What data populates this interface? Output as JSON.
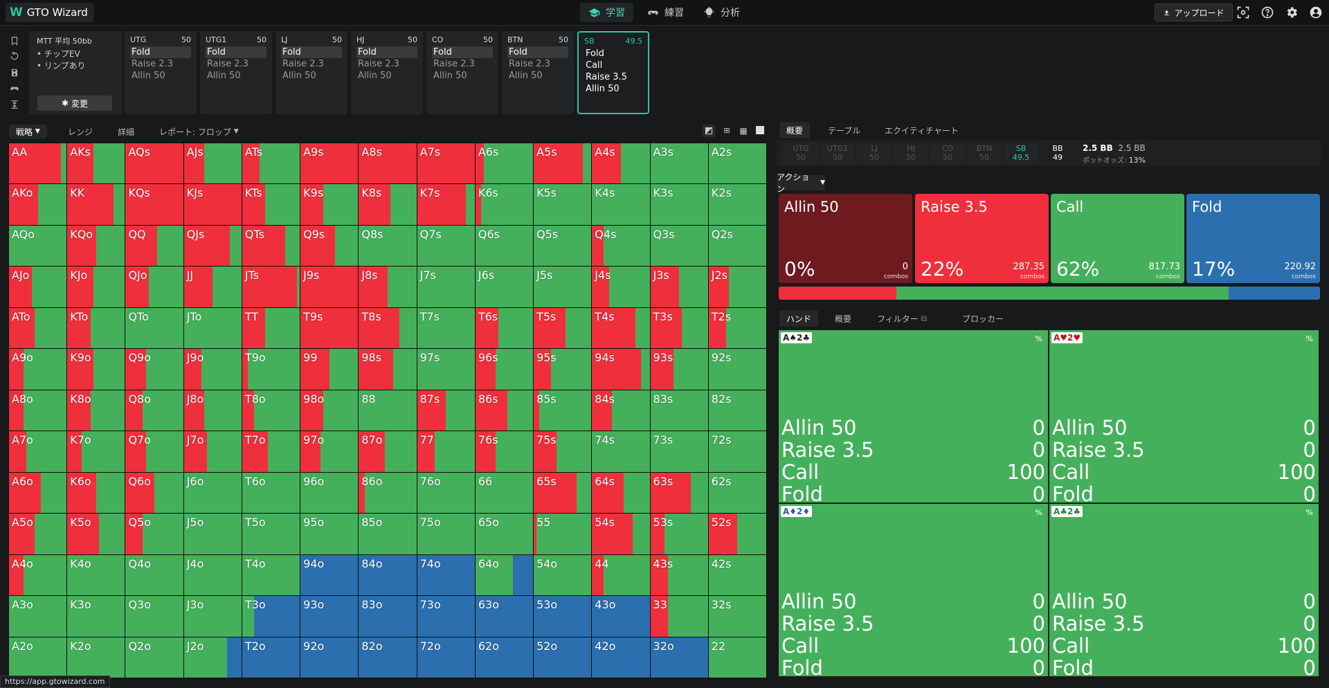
{
  "app": {
    "title": "GTO Wizard"
  },
  "nav": [
    {
      "label": "学習",
      "icon": "graduation-cap-icon",
      "active": true
    },
    {
      "label": "練習",
      "icon": "gamepad-icon",
      "active": false
    },
    {
      "label": "分析",
      "icon": "lightbulb-icon",
      "active": false
    }
  ],
  "toolbar": {
    "upload_label": "アップロード"
  },
  "game": {
    "title": "MTT 平均 50bb",
    "bullets": [
      "チップEV",
      "リンプあり"
    ],
    "change_label": "変更"
  },
  "positions": [
    {
      "name": "UTG",
      "stack": "50",
      "items": [
        "Fold",
        "Raise 2.3",
        "Allin 50"
      ],
      "selected": 0
    },
    {
      "name": "UTG1",
      "stack": "50",
      "items": [
        "Fold",
        "Raise 2.3",
        "Allin 50"
      ],
      "selected": 0
    },
    {
      "name": "LJ",
      "stack": "50",
      "items": [
        "Fold",
        "Raise 2.3",
        "Allin 50"
      ],
      "selected": 0
    },
    {
      "name": "HJ",
      "stack": "50",
      "items": [
        "Fold",
        "Raise 2.3",
        "Allin 50"
      ],
      "selected": 0
    },
    {
      "name": "CO",
      "stack": "50",
      "items": [
        "Fold",
        "Raise 2.3",
        "Allin 50"
      ],
      "selected": 0
    },
    {
      "name": "BTN",
      "stack": "50",
      "items": [
        "Fold",
        "Raise 2.3",
        "Allin 50"
      ],
      "selected": 0
    },
    {
      "name": "SB",
      "stack": "49.5",
      "items": [
        "Fold",
        "Call",
        "Raise 3.5",
        "Allin 50"
      ],
      "selected": -1,
      "active": true
    }
  ],
  "left_tabs": {
    "strategy": "戦略",
    "range": "レンジ",
    "detail": "詳細",
    "report": "レポート: フロップ"
  },
  "right_tabs": {
    "overview": "概要",
    "table": "テーブル",
    "equity": "エクイティチャート"
  },
  "pos_row": {
    "cells": [
      {
        "name": "UTG",
        "stack": "50"
      },
      {
        "name": "UTG1",
        "stack": "50"
      },
      {
        "name": "LJ",
        "stack": "50"
      },
      {
        "name": "HJ",
        "stack": "50"
      },
      {
        "name": "CO",
        "stack": "50"
      },
      {
        "name": "BTN",
        "stack": "50"
      },
      {
        "name": "SB",
        "stack": "49.5"
      },
      {
        "name": "BB",
        "stack": "49"
      }
    ],
    "pot": "2.5 BB",
    "pot2": "2.5 BB",
    "odds_label": "ポットオッズ:",
    "odds": "13%"
  },
  "action_label": "アクション",
  "actions": [
    {
      "name": "Allin 50",
      "pct": "0%",
      "combos": "0",
      "unit": "combos",
      "color": "#6e1a1f",
      "frac": 0
    },
    {
      "name": "Raise 3.5",
      "pct": "22%",
      "combos": "287.35",
      "unit": "combos",
      "color": "#ef2f3c",
      "frac": 0.22
    },
    {
      "name": "Call",
      "pct": "62%",
      "combos": "817.73",
      "unit": "combos",
      "color": "#45b05c",
      "frac": 0.62
    },
    {
      "name": "Fold",
      "pct": "17%",
      "combos": "220.92",
      "unit": "combos",
      "color": "#2c6fae",
      "frac": 0.17
    }
  ],
  "hand_tabs": {
    "hand": "ハンド",
    "overview": "概要",
    "filter": "フィルター",
    "blocker": "ブロッカー"
  },
  "hands": [
    {
      "cards": "A♠2♣",
      "color": "#222",
      "pct": "%",
      "rows": [
        [
          "Allin 50",
          "0"
        ],
        [
          "Raise 3.5",
          "0"
        ],
        [
          "Call",
          "100"
        ],
        [
          "Fold",
          "0"
        ]
      ]
    },
    {
      "cards": "A♥2♥",
      "color": "#c0141f",
      "pct": "%",
      "rows": [
        [
          "Allin 50",
          "0"
        ],
        [
          "Raise 3.5",
          "0"
        ],
        [
          "Call",
          "100"
        ],
        [
          "Fold",
          "0"
        ]
      ]
    },
    {
      "cards": "A♦2♦",
      "color": "#2c5aa8",
      "pct": "%",
      "rows": [
        [
          "Allin 50",
          "0"
        ],
        [
          "Raise 3.5",
          "0"
        ],
        [
          "Call",
          "100"
        ],
        [
          "Fold",
          "0"
        ]
      ]
    },
    {
      "cards": "A♣2♣",
      "color": "#2a8a3a",
      "pct": "%",
      "rows": [
        [
          "Allin 50",
          "0"
        ],
        [
          "Raise 3.5",
          "0"
        ],
        [
          "Call",
          "100"
        ],
        [
          "Fold",
          "0"
        ]
      ]
    }
  ],
  "status_url": "https://app.gtowizard.com",
  "colors": {
    "raise": "#ef2f3c",
    "call": "#45b05c",
    "fold": "#2c6fae",
    "accent": "#2ec4a6"
  },
  "grid": {
    "rows": [
      [
        "AA",
        "AKs",
        "AQs",
        "AJs",
        "ATs",
        "A9s",
        "A8s",
        "A7s",
        "A6s",
        "A5s",
        "A4s",
        "A3s",
        "A2s"
      ],
      [
        "AKo",
        "KK",
        "KQs",
        "KJs",
        "KTs",
        "K9s",
        "K8s",
        "K7s",
        "K6s",
        "K5s",
        "K4s",
        "K3s",
        "K2s"
      ],
      [
        "AQo",
        "KQo",
        "QQ",
        "QJs",
        "QTs",
        "Q9s",
        "Q8s",
        "Q7s",
        "Q6s",
        "Q5s",
        "Q4s",
        "Q3s",
        "Q2s"
      ],
      [
        "AJo",
        "KJo",
        "QJo",
        "JJ",
        "JTs",
        "J9s",
        "J8s",
        "J7s",
        "J6s",
        "J5s",
        "J4s",
        "J3s",
        "J2s"
      ],
      [
        "ATo",
        "KTo",
        "QTo",
        "JTo",
        "TT",
        "T9s",
        "T8s",
        "T7s",
        "T6s",
        "T5s",
        "T4s",
        "T3s",
        "T2s"
      ],
      [
        "A9o",
        "K9o",
        "Q9o",
        "J9o",
        "T9o",
        "99",
        "98s",
        "97s",
        "96s",
        "95s",
        "94s",
        "93s",
        "92s"
      ],
      [
        "A8o",
        "K8o",
        "Q8o",
        "J8o",
        "T8o",
        "98o",
        "88",
        "87s",
        "86s",
        "85s",
        "84s",
        "83s",
        "82s"
      ],
      [
        "A7o",
        "K7o",
        "Q7o",
        "J7o",
        "T7o",
        "97o",
        "87o",
        "77",
        "76s",
        "75s",
        "74s",
        "73s",
        "72s"
      ],
      [
        "A6o",
        "K6o",
        "Q6o",
        "J6o",
        "T6o",
        "96o",
        "86o",
        "76o",
        "66",
        "65s",
        "64s",
        "63s",
        "62s"
      ],
      [
        "A5o",
        "K5o",
        "Q5o",
        "J5o",
        "T5o",
        "95o",
        "85o",
        "75o",
        "65o",
        "55",
        "54s",
        "53s",
        "52s"
      ],
      [
        "A4o",
        "K4o",
        "Q4o",
        "J4o",
        "T4o",
        "94o",
        "84o",
        "74o",
        "64o",
        "54o",
        "44",
        "43s",
        "42s"
      ],
      [
        "A3o",
        "K3o",
        "Q3o",
        "J3o",
        "T3o",
        "93o",
        "83o",
        "73o",
        "63o",
        "53o",
        "43o",
        "33",
        "32s"
      ],
      [
        "A2o",
        "K2o",
        "Q2o",
        "J2o",
        "T2o",
        "92o",
        "82o",
        "72o",
        "62o",
        "52o",
        "42o",
        "32o",
        "22"
      ]
    ],
    "raise": [
      [
        0.9,
        0.45,
        1.0,
        0.35,
        0.3,
        1.0,
        1.0,
        1.0,
        0.15,
        0.85,
        0.5,
        0,
        0
      ],
      [
        0.5,
        0.8,
        1.0,
        1.0,
        0.4,
        0.4,
        0.55,
        0.85,
        0.1,
        0,
        0,
        0,
        0
      ],
      [
        0,
        0.5,
        0.55,
        0.8,
        0.75,
        0.6,
        0,
        0,
        0,
        0,
        0.2,
        0,
        0
      ],
      [
        0.4,
        0.45,
        0.4,
        0.5,
        0.95,
        1.0,
        0.5,
        0,
        0,
        0,
        0.3,
        0.5,
        0.35
      ],
      [
        0.45,
        0.4,
        0,
        0,
        0.4,
        1.0,
        0.7,
        0,
        0.4,
        0.55,
        0.75,
        0.55,
        0.3
      ],
      [
        0.25,
        0.45,
        0.35,
        0.3,
        0.1,
        0.5,
        0.6,
        0,
        0.35,
        0.3,
        0.85,
        0.4,
        0
      ],
      [
        0.25,
        0.4,
        0.3,
        0.35,
        0.2,
        0.4,
        0,
        0.5,
        0.55,
        0.1,
        0.35,
        0,
        0
      ],
      [
        0.3,
        0.25,
        0.35,
        0.4,
        0.45,
        0.35,
        0.45,
        0.3,
        0.35,
        0.4,
        0,
        0,
        0
      ],
      [
        0.55,
        0.5,
        0.5,
        0,
        0,
        0,
        0.1,
        0,
        0,
        0.75,
        0.55,
        0.7,
        0
      ],
      [
        0.45,
        0.55,
        0.3,
        0,
        0,
        0,
        0,
        0,
        0,
        0.05,
        0.7,
        0.25,
        0.5
      ],
      [
        0.25,
        0,
        0,
        0,
        0,
        0,
        0,
        0,
        0,
        0,
        0.2,
        0.3,
        0
      ],
      [
        0,
        0,
        0,
        0,
        0,
        0,
        0,
        0,
        0,
        0,
        0,
        0.3,
        0
      ],
      [
        0,
        0,
        0,
        0,
        0,
        0,
        0,
        0,
        0,
        0,
        0,
        0,
        0
      ]
    ],
    "fold": [
      [
        0,
        0,
        0,
        0,
        0,
        0,
        0,
        0,
        0,
        0,
        0,
        0,
        0
      ],
      [
        0,
        0,
        0,
        0,
        0,
        0,
        0,
        0,
        0,
        0,
        0,
        0,
        0
      ],
      [
        0,
        0,
        0,
        0,
        0,
        0,
        0,
        0,
        0,
        0,
        0,
        0,
        0
      ],
      [
        0,
        0,
        0,
        0,
        0,
        0,
        0,
        0,
        0,
        0,
        0,
        0,
        0
      ],
      [
        0,
        0,
        0,
        0,
        0,
        0,
        0,
        0,
        0,
        0,
        0,
        0,
        0
      ],
      [
        0,
        0,
        0,
        0,
        0,
        0,
        0,
        0,
        0,
        0,
        0,
        0,
        0
      ],
      [
        0,
        0,
        0,
        0,
        0,
        0,
        0,
        0,
        0,
        0,
        0,
        0,
        0
      ],
      [
        0,
        0,
        0,
        0,
        0,
        0,
        0,
        0,
        0,
        0,
        0,
        0,
        0
      ],
      [
        0,
        0,
        0,
        0,
        0,
        0,
        0,
        0,
        0,
        0,
        0,
        0,
        0
      ],
      [
        0,
        0,
        0,
        0,
        0,
        0,
        0,
        0,
        0,
        0,
        0,
        0,
        0
      ],
      [
        0,
        0,
        0,
        0,
        0,
        1.0,
        1.0,
        1.0,
        0.35,
        0,
        0,
        0,
        0
      ],
      [
        0,
        0,
        0,
        0,
        0.8,
        1.0,
        1.0,
        1.0,
        1.0,
        1.0,
        1.0,
        0,
        0
      ],
      [
        0,
        0,
        0,
        0.25,
        1.0,
        1.0,
        1.0,
        1.0,
        1.0,
        1.0,
        1.0,
        1.0,
        0
      ]
    ]
  }
}
